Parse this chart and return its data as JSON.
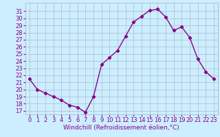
{
  "x": [
    0,
    1,
    2,
    3,
    4,
    5,
    6,
    7,
    8,
    9,
    10,
    11,
    12,
    13,
    14,
    15,
    16,
    17,
    18,
    19,
    20,
    21,
    22,
    23
  ],
  "y": [
    21.5,
    20.0,
    19.5,
    19.0,
    18.5,
    17.8,
    17.5,
    16.8,
    19.0,
    23.5,
    24.5,
    25.5,
    27.5,
    29.5,
    30.3,
    31.1,
    31.3,
    30.2,
    28.3,
    28.8,
    27.3,
    24.3,
    22.5,
    21.5
  ],
  "line_color": "#880088",
  "marker": "D",
  "marker_size": 2.2,
  "xlabel": "Windchill (Refroidissement éolien,°C)",
  "xlim": [
    -0.5,
    23.5
  ],
  "ylim": [
    16.5,
    32.2
  ],
  "yticks": [
    17,
    18,
    19,
    20,
    21,
    22,
    23,
    24,
    25,
    26,
    27,
    28,
    29,
    30,
    31
  ],
  "xticks": [
    0,
    1,
    2,
    3,
    4,
    5,
    6,
    7,
    8,
    9,
    10,
    11,
    12,
    13,
    14,
    15,
    16,
    17,
    18,
    19,
    20,
    21,
    22,
    23
  ],
  "bg_color": "#cceeff",
  "grid_color": "#aabbcc",
  "tick_label_color": "#880088",
  "xlabel_color": "#880088",
  "xlabel_fontsize": 6.5,
  "tick_fontsize": 6.0,
  "line_width": 1.0
}
